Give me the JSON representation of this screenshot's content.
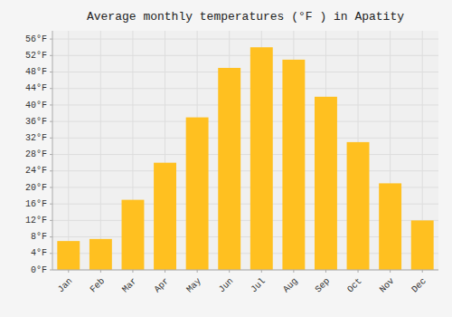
{
  "chart_data": {
    "type": "bar",
    "title": "Average monthly temperatures (°F ) in Apatity",
    "categories": [
      "Jan",
      "Feb",
      "Mar",
      "Apr",
      "May",
      "Jun",
      "Jul",
      "Aug",
      "Sep",
      "Oct",
      "Nov",
      "Dec"
    ],
    "values": [
      7,
      7.5,
      17,
      26,
      37,
      49,
      54,
      51,
      42,
      31,
      21,
      12
    ],
    "color": "#FFC020",
    "ylim": [
      0,
      58
    ],
    "yticks": [
      {
        "value": 0,
        "label": "0°F"
      },
      {
        "value": 4,
        "label": "4°F"
      },
      {
        "value": 8,
        "label": "8°F"
      },
      {
        "value": 12,
        "label": "12°F"
      },
      {
        "value": 16,
        "label": "16°F"
      },
      {
        "value": 20,
        "label": "20°F"
      },
      {
        "value": 24,
        "label": "24°F"
      },
      {
        "value": 28,
        "label": "28°F"
      },
      {
        "value": 32,
        "label": "32°F"
      },
      {
        "value": 36,
        "label": "36°F"
      },
      {
        "value": 40,
        "label": "40°F"
      },
      {
        "value": 44,
        "label": "44°F"
      },
      {
        "value": 48,
        "label": "48°F"
      },
      {
        "value": 52,
        "label": "52°F"
      },
      {
        "value": 56,
        "label": "56°F"
      }
    ],
    "grid": true
  }
}
